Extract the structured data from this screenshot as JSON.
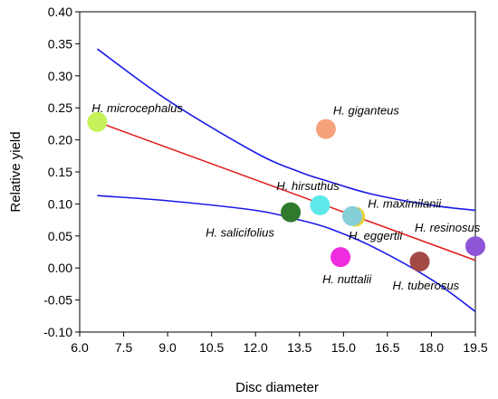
{
  "chart_data": {
    "type": "scatter",
    "xlabel": "Disc diameter",
    "ylabel": "Relative yield",
    "xlim": [
      6.0,
      19.5
    ],
    "ylim": [
      -0.1,
      0.4
    ],
    "x_ticks": [
      "6.0",
      "7.5",
      "9.0",
      "10.5",
      "12.0",
      "13.5",
      "15.0",
      "16.5",
      "18.0",
      "19.5"
    ],
    "y_ticks": [
      "0.40",
      "0.35",
      "0.30",
      "0.25",
      "0.20",
      "0.15",
      "0.10",
      "0.05",
      "0.00",
      "-0.05",
      "-0.10"
    ],
    "grid": false,
    "points": [
      {
        "label": "H. microcephalus",
        "x": 6.6,
        "y": 0.228,
        "color": "#c6f15a"
      },
      {
        "label": "H. giganteus",
        "x": 14.4,
        "y": 0.217,
        "color": "#f5a27a"
      },
      {
        "label": "H. hirsuthus",
        "x": 14.2,
        "y": 0.098,
        "color": "#5ee8ec"
      },
      {
        "label": "H. salicifolius",
        "x": 13.2,
        "y": 0.087,
        "color": "#2f7a2c"
      },
      {
        "label": "H. maximilanii",
        "x": 15.4,
        "y": 0.08,
        "color": "#e8d33a"
      },
      {
        "label": "H. eggertii",
        "x": 15.3,
        "y": 0.081,
        "color": "#86cfd9"
      },
      {
        "label": "H. resinosus",
        "x": 19.5,
        "y": 0.034,
        "color": "#8e55d6"
      },
      {
        "label": "H. nuttalii",
        "x": 14.9,
        "y": 0.017,
        "color": "#f02ce0"
      },
      {
        "label": "H. tuberosus",
        "x": 17.6,
        "y": 0.01,
        "color": "#a44a45"
      }
    ],
    "fit_line": {
      "color": "#e02020",
      "x": [
        6.6,
        19.5
      ],
      "y": [
        0.228,
        0.012
      ]
    },
    "ci_upper": {
      "color": "#1a1ae6",
      "x": [
        6.6,
        9.0,
        12.0,
        13.5,
        14.5,
        16.0,
        18.0,
        19.5
      ],
      "y": [
        0.342,
        0.262,
        0.18,
        0.15,
        0.135,
        0.115,
        0.098,
        0.09
      ]
    },
    "ci_lower": {
      "color": "#1a1ae6",
      "x": [
        6.6,
        9.0,
        12.0,
        13.5,
        14.5,
        16.0,
        18.0,
        19.5
      ],
      "y": [
        0.113,
        0.105,
        0.09,
        0.075,
        0.062,
        0.033,
        -0.018,
        -0.068
      ]
    }
  }
}
